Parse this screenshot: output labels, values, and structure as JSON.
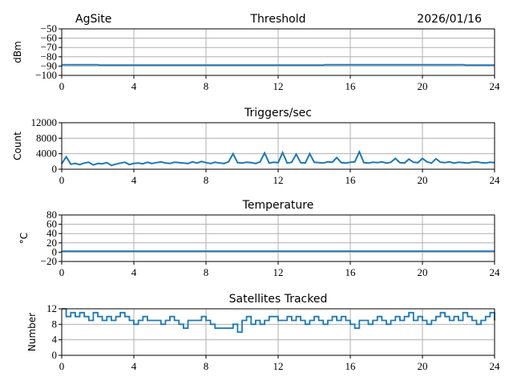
{
  "header": {
    "left": "AgSite",
    "right": "2026/01/16"
  },
  "colors": {
    "series": "#1f77b4",
    "grid": "#b0b0b0"
  },
  "chart_data": [
    {
      "type": "line",
      "title": "Threshold",
      "ylabel": "dBm",
      "xlim": [
        0,
        24
      ],
      "ylim": [
        -100,
        -50
      ],
      "xticks": [
        0,
        4,
        8,
        12,
        16,
        20,
        24
      ],
      "yticks": [
        -100,
        -90,
        -80,
        -70,
        -60,
        -50
      ],
      "ytick_labels": [
        "−100",
        "−90",
        "−80",
        "−70",
        "−60",
        "−50"
      ],
      "x": [
        0,
        2,
        2.1,
        14.5,
        14.6,
        22.3,
        22.4,
        24
      ],
      "y": [
        -88.5,
        -88.5,
        -89,
        -89,
        -88.5,
        -88.5,
        -89,
        -89
      ]
    },
    {
      "type": "line",
      "title": "Triggers/sec",
      "ylabel": "Count",
      "xlim": [
        0,
        24
      ],
      "ylim": [
        0,
        12000
      ],
      "xticks": [
        0,
        4,
        8,
        12,
        16,
        20,
        24
      ],
      "yticks": [
        0,
        4000,
        8000,
        12000
      ],
      "ytick_labels": [
        "0",
        "4000",
        "8000",
        "12000"
      ],
      "x_step": 0.25,
      "y": [
        1400,
        3200,
        1300,
        1500,
        1200,
        1600,
        1800,
        1100,
        1500,
        1400,
        1700,
        1000,
        1300,
        1600,
        1800,
        1200,
        1500,
        1600,
        1400,
        1800,
        1500,
        1700,
        1900,
        1600,
        1500,
        1800,
        1700,
        1600,
        1500,
        1900,
        1600,
        2000,
        1700,
        1500,
        1800,
        1600,
        1500,
        1900,
        4000,
        1700,
        1600,
        1800,
        1700,
        1500,
        1900,
        4200,
        1600,
        1800,
        1700,
        4300,
        1600,
        1800,
        3900,
        1700,
        1600,
        4000,
        1800,
        1700,
        1600,
        1900,
        1800,
        3000,
        1700,
        1600,
        1800,
        1900,
        4500,
        1700,
        1600,
        1800,
        1700,
        1900,
        1600,
        1800,
        2800,
        1700,
        1600,
        2600,
        1800,
        1700,
        2800,
        1900,
        1600,
        2700,
        1800,
        1700,
        1900,
        1600,
        1800,
        1700,
        1600,
        1800,
        1900,
        1700,
        1600,
        1800,
        1700
      ]
    },
    {
      "type": "line",
      "title": "Temperature",
      "ylabel": "°C",
      "xlim": [
        0,
        24
      ],
      "ylim": [
        -20,
        80
      ],
      "xticks": [
        0,
        4,
        8,
        12,
        16,
        20,
        24
      ],
      "yticks": [
        -20,
        0,
        20,
        40,
        60,
        80
      ],
      "ytick_labels": [
        "−20",
        "0",
        "20",
        "40",
        "60",
        "80"
      ],
      "x": [
        0,
        24
      ],
      "y": [
        2,
        2
      ]
    },
    {
      "type": "line",
      "title": "Satellites Tracked",
      "ylabel": "Number",
      "xlim": [
        0,
        24
      ],
      "ylim": [
        0,
        12
      ],
      "xticks": [
        0,
        4,
        8,
        12,
        16,
        20,
        24
      ],
      "yticks": [
        0,
        4,
        8,
        12
      ],
      "ytick_labels": [
        "0",
        "4",
        "8",
        "12"
      ],
      "x_step": 0.25,
      "y": [
        12,
        10,
        11,
        10,
        11,
        10,
        9,
        11,
        10,
        9,
        10,
        9,
        10,
        11,
        10,
        9,
        8,
        9,
        10,
        9,
        9,
        9,
        8,
        9,
        10,
        9,
        8,
        7,
        9,
        9,
        9,
        10,
        9,
        8,
        7,
        7,
        7,
        7,
        8,
        6,
        9,
        10,
        8,
        9,
        8,
        9,
        10,
        10,
        9,
        9,
        10,
        9,
        10,
        9,
        8,
        9,
        10,
        9,
        8,
        9,
        10,
        9,
        10,
        9,
        8,
        7,
        9,
        9,
        8,
        9,
        10,
        9,
        8,
        9,
        10,
        9,
        10,
        11,
        9,
        10,
        9,
        8,
        9,
        10,
        11,
        10,
        9,
        10,
        9,
        11,
        10,
        9,
        8,
        9,
        10,
        11,
        9
      ]
    }
  ]
}
